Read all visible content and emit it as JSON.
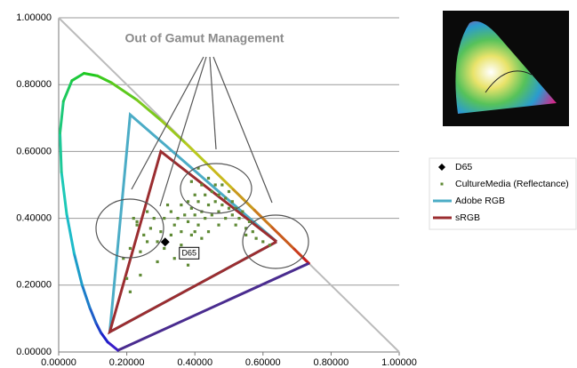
{
  "chart_data": {
    "type": "scatter",
    "annotation": "Out of Gamut Management",
    "xlim": [
      0,
      1
    ],
    "ylim": [
      0,
      1
    ],
    "xticks": [
      {
        "value": 0,
        "label": "0.00000"
      },
      {
        "value": 0.2,
        "label": "0.20000"
      },
      {
        "value": 0.4,
        "label": "0.40000"
      },
      {
        "value": 0.6,
        "label": "0.60000"
      },
      {
        "value": 0.8,
        "label": "0.80000"
      },
      {
        "value": 1,
        "label": "1.00000"
      }
    ],
    "yticks": [
      {
        "value": 0,
        "label": "0.00000"
      },
      {
        "value": 0.2,
        "label": "0.20000"
      },
      {
        "value": 0.4,
        "label": "0.40000"
      },
      {
        "value": 0.6,
        "label": "0.60000"
      },
      {
        "value": 0.8,
        "label": "0.80000"
      },
      {
        "value": 1,
        "label": "1.00000"
      }
    ],
    "grid": true,
    "legend": "right",
    "spectral_locus": {
      "x": [
        0.1741,
        0.144,
        0.1241,
        0.1096,
        0.0913,
        0.0687,
        0.0454,
        0.0235,
        0.0082,
        0.0039,
        0.0139,
        0.0389,
        0.0743,
        0.1142,
        0.1547,
        0.2296,
        0.3016,
        0.3731,
        0.4441,
        0.5125,
        0.5752,
        0.627,
        0.6915,
        0.719,
        0.7347
      ],
      "y": [
        0.005,
        0.0297,
        0.0578,
        0.0868,
        0.1327,
        0.2007,
        0.295,
        0.4127,
        0.5384,
        0.6548,
        0.7502,
        0.812,
        0.8338,
        0.8262,
        0.8059,
        0.7543,
        0.6923,
        0.6245,
        0.5547,
        0.4866,
        0.4242,
        0.3725,
        0.3083,
        0.2809,
        0.2653
      ]
    },
    "series": [
      {
        "name": "D65",
        "color": "#000000",
        "marker": "diamond",
        "x": [
          0.3127
        ],
        "y": [
          0.329
        ]
      },
      {
        "name": "CultureMedia (Reflectance)",
        "color": "#5f8a35",
        "marker": "square",
        "x": [
          0.22,
          0.23,
          0.21,
          0.25,
          0.24,
          0.2,
          0.21,
          0.26,
          0.27,
          0.28,
          0.26,
          0.29,
          0.3,
          0.31,
          0.32,
          0.33,
          0.34,
          0.35,
          0.36,
          0.36,
          0.37,
          0.38,
          0.38,
          0.39,
          0.4,
          0.4,
          0.41,
          0.41,
          0.42,
          0.42,
          0.43,
          0.43,
          0.44,
          0.44,
          0.45,
          0.45,
          0.46,
          0.46,
          0.47,
          0.47,
          0.48,
          0.48,
          0.49,
          0.49,
          0.5,
          0.5,
          0.51,
          0.51,
          0.52,
          0.52,
          0.53,
          0.54,
          0.55,
          0.55,
          0.56,
          0.57,
          0.58,
          0.6,
          0.62,
          0.34,
          0.36,
          0.39,
          0.33,
          0.31,
          0.29,
          0.37,
          0.44,
          0.47,
          0.4,
          0.42,
          0.38,
          0.23,
          0.19,
          0.24,
          0.41,
          0.39
        ],
        "y": [
          0.4,
          0.39,
          0.31,
          0.35,
          0.3,
          0.22,
          0.18,
          0.33,
          0.37,
          0.4,
          0.42,
          0.33,
          0.36,
          0.4,
          0.44,
          0.42,
          0.38,
          0.4,
          0.44,
          0.36,
          0.41,
          0.45,
          0.39,
          0.43,
          0.47,
          0.41,
          0.38,
          0.45,
          0.5,
          0.42,
          0.47,
          0.4,
          0.44,
          0.52,
          0.48,
          0.41,
          0.45,
          0.5,
          0.42,
          0.47,
          0.44,
          0.5,
          0.4,
          0.46,
          0.43,
          0.48,
          0.41,
          0.45,
          0.38,
          0.43,
          0.4,
          0.42,
          0.37,
          0.35,
          0.39,
          0.36,
          0.34,
          0.33,
          0.32,
          0.28,
          0.32,
          0.35,
          0.35,
          0.31,
          0.27,
          0.3,
          0.36,
          0.38,
          0.36,
          0.34,
          0.26,
          0.38,
          0.28,
          0.23,
          0.55,
          0.51
        ]
      },
      {
        "name": "Adobe RGB",
        "color": "#4bacc6",
        "marker": "line",
        "x": [
          0.64,
          0.21,
          0.15,
          0.64
        ],
        "y": [
          0.33,
          0.71,
          0.06,
          0.33
        ]
      },
      {
        "name": "sRGB",
        "color": "#9b2d30",
        "marker": "line",
        "x": [
          0.64,
          0.3,
          0.15,
          0.64
        ],
        "y": [
          0.33,
          0.6,
          0.06,
          0.33
        ]
      }
    ]
  }
}
